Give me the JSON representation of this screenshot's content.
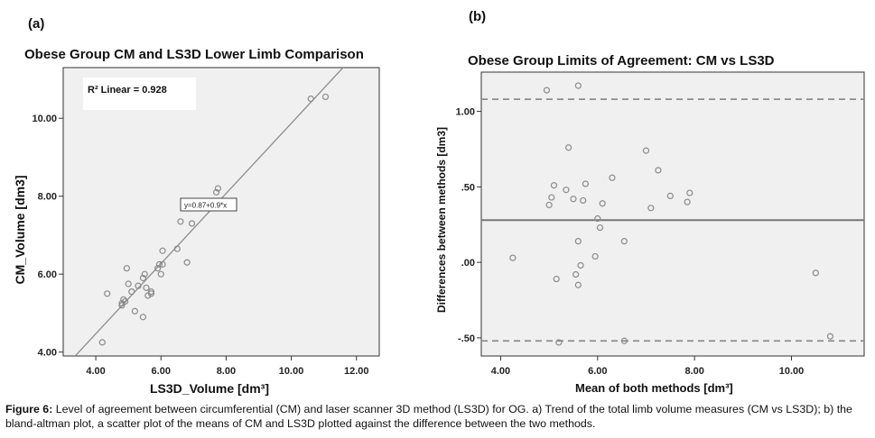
{
  "panel_a_label": "(a)",
  "panel_b_label": "(b)",
  "caption": {
    "label": "Figure 6:",
    "text": " Level of agreement between circumferential (CM) and laser scanner 3D method (LS3D) for OG. a) Trend of the total limb volume measures (CM vs LS3D); b) the bland-altman plot, a scatter plot of the means of CM and LS3D plotted against the difference between the two methods."
  },
  "chart_data": [
    {
      "type": "scatter",
      "title": "Obese Group CM and LS3D Lower Limb Comparison",
      "xlabel": "LS3D_Volume [dm³]",
      "ylabel": "CM_Volume [dm3]",
      "xlim": [
        3.0,
        12.7
      ],
      "ylim": [
        3.9,
        11.3
      ],
      "xticks": [
        4,
        6,
        8,
        10,
        12
      ],
      "yticks": [
        4,
        6,
        8,
        10
      ],
      "xtick_labels": [
        "4.00",
        "6.00",
        "8.00",
        "10.00",
        "12.00"
      ],
      "ytick_labels": [
        "4.00",
        "6.00",
        "8.00",
        "10.00"
      ],
      "grid": false,
      "r2_label": "R² Linear = 0.928",
      "fit_label": "y=0.87+0.9*x",
      "fit": {
        "intercept": 0.87,
        "slope": 0.9
      },
      "background": "#f0f0f0",
      "marker_color": "#8a8a8a",
      "line_color": "#8c8c8c",
      "points": [
        [
          4.2,
          4.25
        ],
        [
          4.35,
          5.5
        ],
        [
          4.8,
          5.2
        ],
        [
          4.8,
          5.25
        ],
        [
          4.85,
          5.35
        ],
        [
          4.9,
          5.3
        ],
        [
          4.95,
          6.15
        ],
        [
          5.0,
          5.75
        ],
        [
          5.1,
          5.55
        ],
        [
          5.2,
          5.05
        ],
        [
          5.3,
          5.7
        ],
        [
          5.45,
          5.9
        ],
        [
          5.5,
          6.0
        ],
        [
          5.45,
          4.9
        ],
        [
          5.55,
          5.65
        ],
        [
          5.6,
          5.45
        ],
        [
          5.7,
          5.55
        ],
        [
          5.7,
          5.5
        ],
        [
          5.9,
          6.15
        ],
        [
          5.95,
          6.25
        ],
        [
          6.0,
          6.0
        ],
        [
          6.05,
          6.6
        ],
        [
          6.05,
          6.25
        ],
        [
          6.5,
          6.65
        ],
        [
          6.6,
          7.35
        ],
        [
          6.8,
          6.3
        ],
        [
          6.95,
          7.3
        ],
        [
          7.7,
          8.1
        ],
        [
          7.75,
          8.2
        ],
        [
          10.6,
          10.5
        ],
        [
          11.05,
          10.55
        ]
      ]
    },
    {
      "type": "scatter",
      "title": "Obese Group Limits of Agreement: CM vs LS3D",
      "xlabel": "Mean of both methods [dm³]",
      "ylabel": "Differences between methods [dm3]",
      "xlim": [
        3.6,
        11.5
      ],
      "ylim": [
        -0.62,
        1.26
      ],
      "xticks": [
        4,
        6,
        8,
        10
      ],
      "yticks": [
        1.0,
        0.5,
        0.0,
        -0.5
      ],
      "xtick_labels": [
        "4.00",
        "6.00",
        "8.00",
        "10.00"
      ],
      "ytick_labels": [
        "1.00",
        ".50",
        ".00",
        "-.50"
      ],
      "grid": false,
      "mean_difference": 0.28,
      "upper_limit": 1.08,
      "lower_limit": -0.52,
      "background": "#f0f0f0",
      "marker_color": "#8a8a8a",
      "line_color": "#8c8c8c",
      "points": [
        [
          4.25,
          0.03
        ],
        [
          4.95,
          1.14
        ],
        [
          5.0,
          0.38
        ],
        [
          5.05,
          0.43
        ],
        [
          5.1,
          0.51
        ],
        [
          5.15,
          -0.11
        ],
        [
          5.2,
          -0.53
        ],
        [
          5.35,
          0.48
        ],
        [
          5.4,
          0.76
        ],
        [
          5.5,
          0.42
        ],
        [
          5.55,
          -0.08
        ],
        [
          5.6,
          1.17
        ],
        [
          5.6,
          0.14
        ],
        [
          5.65,
          -0.02
        ],
        [
          5.6,
          -0.15
        ],
        [
          5.7,
          0.41
        ],
        [
          5.75,
          0.52
        ],
        [
          5.95,
          0.04
        ],
        [
          6.0,
          0.29
        ],
        [
          6.05,
          0.23
        ],
        [
          6.1,
          0.39
        ],
        [
          6.3,
          0.56
        ],
        [
          6.55,
          0.14
        ],
        [
          6.55,
          -0.52
        ],
        [
          7.0,
          0.74
        ],
        [
          7.1,
          0.36
        ],
        [
          7.25,
          0.61
        ],
        [
          7.5,
          0.44
        ],
        [
          7.85,
          0.4
        ],
        [
          7.9,
          0.46
        ],
        [
          10.5,
          -0.07
        ],
        [
          10.8,
          -0.49
        ]
      ]
    }
  ]
}
